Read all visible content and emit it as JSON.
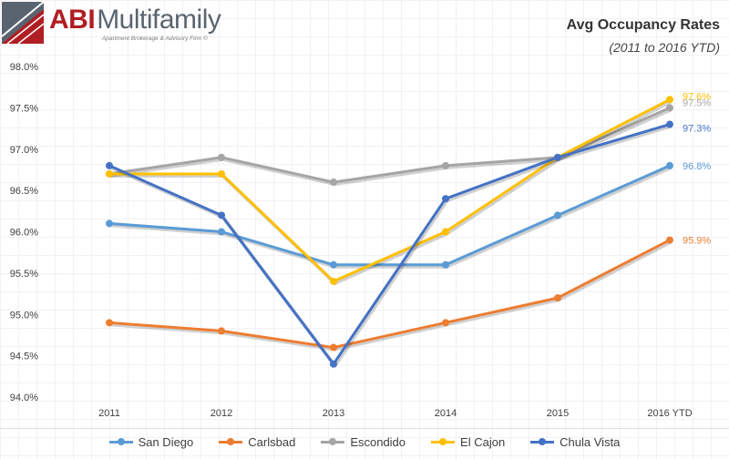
{
  "logo": {
    "brand_abi": "ABI",
    "brand_rest": "Multifamily",
    "tagline": "Apartment Brokerage & Advisory Firm ©"
  },
  "header": {
    "title": "Avg Occupancy Rates",
    "subtitle": "(2011 to 2016 YTD)"
  },
  "chart_data": {
    "type": "line",
    "title": "Avg Occupancy Rates",
    "subtitle": "(2011 to 2016 YTD)",
    "xlabel": "",
    "ylabel": "",
    "categories": [
      "2011",
      "2012",
      "2013",
      "2014",
      "2015",
      "2016 YTD"
    ],
    "ylim": [
      94.0,
      98.0
    ],
    "yticks": [
      94.0,
      94.5,
      95.0,
      95.5,
      96.0,
      96.5,
      97.0,
      97.5,
      98.0
    ],
    "ytick_labels": [
      "94.0%",
      "94.5%",
      "95.0%",
      "95.5%",
      "96.0%",
      "96.5%",
      "97.0%",
      "97.5%",
      "98.0%"
    ],
    "grid": false,
    "legend_position": "bottom",
    "series": [
      {
        "name": "San Diego",
        "color": "#5b9bd5",
        "values": [
          96.1,
          96.0,
          95.6,
          95.6,
          96.2,
          96.8
        ],
        "end_label": "96.8%"
      },
      {
        "name": "Carlsbad",
        "color": "#ed7d31",
        "values": [
          94.9,
          94.8,
          94.6,
          94.9,
          95.2,
          95.9
        ],
        "end_label": "95.9%"
      },
      {
        "name": "Escondido",
        "color": "#a5a5a5",
        "values": [
          96.7,
          96.9,
          96.6,
          96.8,
          96.9,
          97.5
        ],
        "end_label": "97.5%"
      },
      {
        "name": "El Cajon",
        "color": "#ffc000",
        "values": [
          96.7,
          96.7,
          95.4,
          96.0,
          96.9,
          97.6
        ],
        "end_label": "97.6%"
      },
      {
        "name": "Chula Vista",
        "color": "#4472c4",
        "values": [
          96.8,
          96.2,
          94.4,
          96.4,
          96.9,
          97.3
        ],
        "end_label": "97.3%"
      }
    ]
  }
}
